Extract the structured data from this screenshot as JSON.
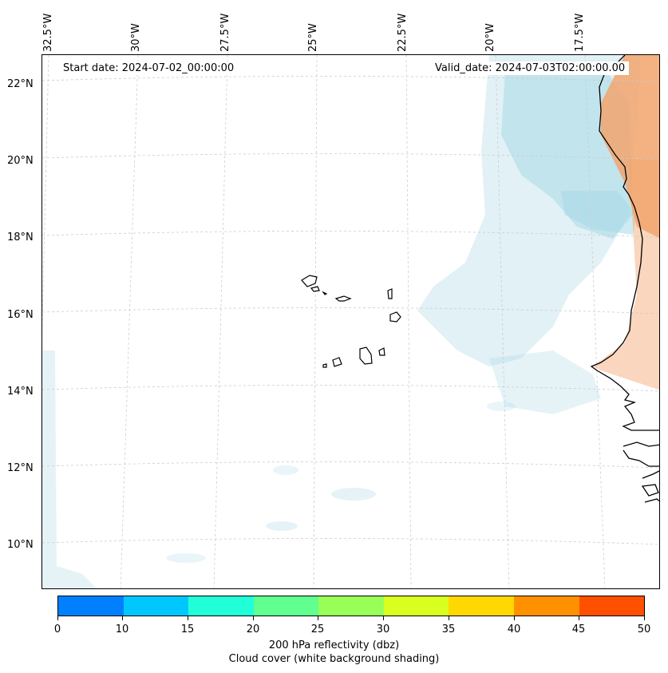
{
  "map": {
    "start_date": "Start date: 2024-07-02_00:00:00",
    "valid_date": "Valid_date: 2024-07-03T02:00:00.00",
    "lon_labels": [
      "32.5°W",
      "30°W",
      "27.5°W",
      "25°W",
      "22.5°W",
      "20°W",
      "17.5°W"
    ],
    "lat_labels": [
      "22°N",
      "20°N",
      "18°N",
      "16°N",
      "14°N",
      "12°N",
      "10°N"
    ],
    "cloud_color": "#a8d8e6",
    "reflectivity_color": "#f2a46c",
    "coastline_color": "#000000",
    "gridline_style": "dashed light gray"
  },
  "colorbar": {
    "tick_labels": [
      "0",
      "10",
      "15",
      "20",
      "25",
      "30",
      "35",
      "40",
      "45",
      "50"
    ],
    "colors": [
      "#0080ff",
      "#00c8ff",
      "#20ffd8",
      "#60ff90",
      "#98ff58",
      "#d8ff20",
      "#ffd800",
      "#ff9000",
      "#ff5000"
    ],
    "label_line1": "200 hPa reflectivity (dbz)",
    "label_line2": "Cloud cover (white background shading)"
  }
}
